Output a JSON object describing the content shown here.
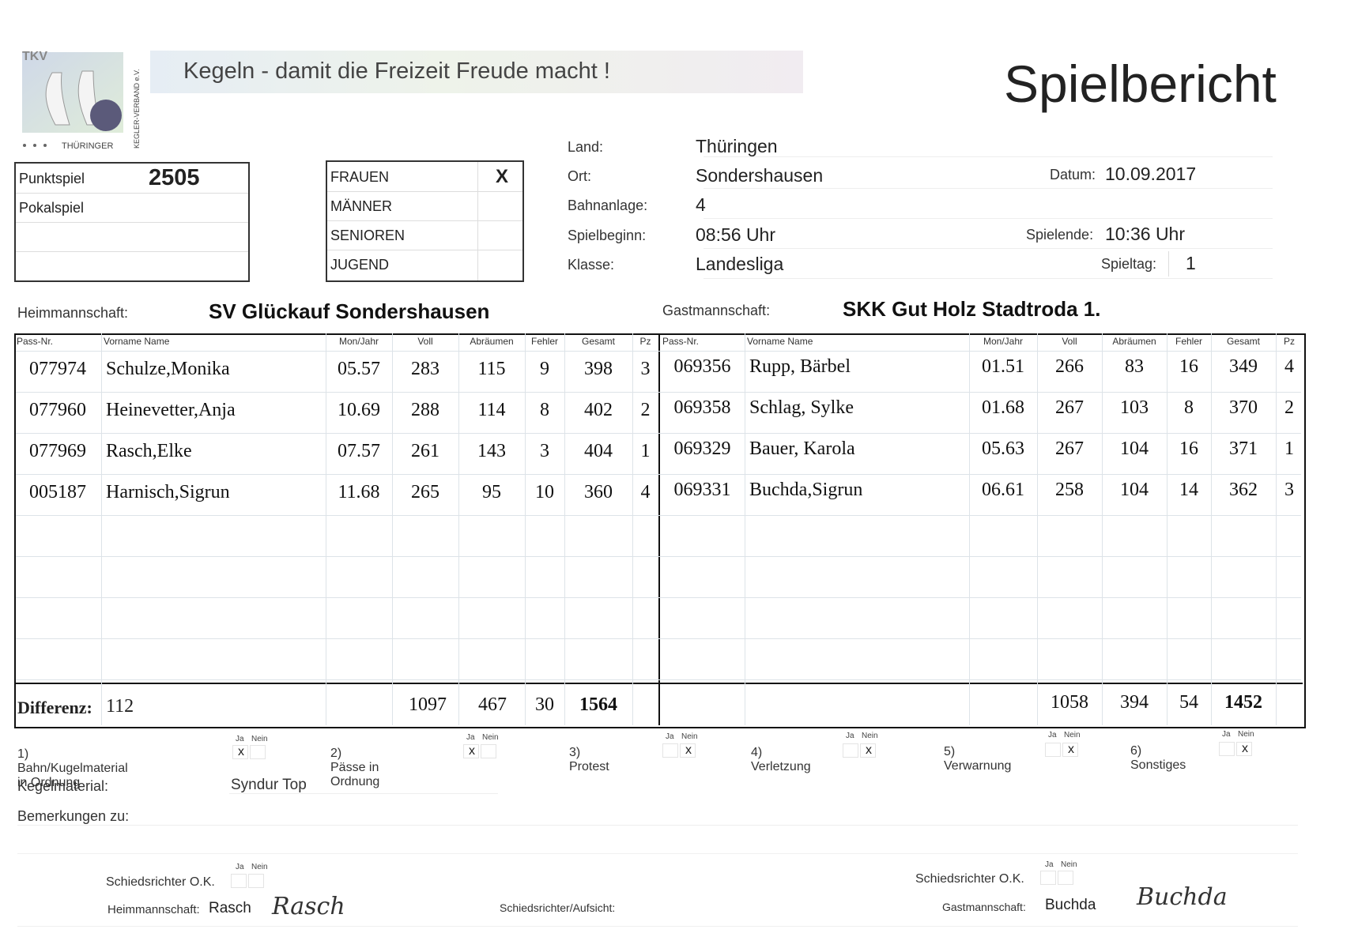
{
  "header": {
    "logo_text": "TKV",
    "logo_caption": "THÜRINGER",
    "logo_side": "KEGLER-VERBAND e.V.",
    "banner": "Kegeln  -  damit die Freizeit Freude macht !",
    "title": "Spielbericht"
  },
  "match_type": {
    "rows": [
      {
        "label": "Punktspiel",
        "value": "2505"
      },
      {
        "label": "Pokalspiel",
        "value": ""
      }
    ]
  },
  "category": {
    "rows": [
      {
        "label": "FRAUEN",
        "mark": "X"
      },
      {
        "label": "MÄNNER",
        "mark": ""
      },
      {
        "label": "SENIOREN",
        "mark": ""
      },
      {
        "label": "JUGEND",
        "mark": ""
      }
    ]
  },
  "info": {
    "land_label": "Land:",
    "land": "Thüringen",
    "ort_label": "Ort:",
    "ort": "Sondershausen",
    "bahn_label": "Bahnanlage:",
    "bahn": "4",
    "beginn_label": "Spielbeginn:",
    "beginn": "08:56 Uhr",
    "klasse_label": "Klasse:",
    "klasse": "Landesliga",
    "datum_label": "Datum:",
    "datum": "10.09.2017",
    "ende_label": "Spielende:",
    "ende": "10:36 Uhr",
    "spieltag_label": "Spieltag:",
    "spieltag": "1"
  },
  "teams": {
    "home_label": "Heimmannschaft:",
    "home": "SV Glückauf Sondershausen",
    "guest_label": "Gastmannschaft:",
    "guest": "SKK Gut Holz Stadtroda 1."
  },
  "columns": [
    "Pass-Nr.",
    "Vorname  Name",
    "Mon/Jahr",
    "Voll",
    "Abräumen",
    "Fehler",
    "Gesamt",
    "Pz"
  ],
  "home_players": [
    {
      "pass": "077974",
      "name": "Schulze,Monika",
      "mon": "05.57",
      "voll": "283",
      "abr": "115",
      "fehler": "9",
      "gesamt": "398",
      "pz": "3"
    },
    {
      "pass": "077960",
      "name": "Heinevetter,Anja",
      "mon": "10.69",
      "voll": "288",
      "abr": "114",
      "fehler": "8",
      "gesamt": "402",
      "pz": "2"
    },
    {
      "pass": "077969",
      "name": "Rasch,Elke",
      "mon": "07.57",
      "voll": "261",
      "abr": "143",
      "fehler": "3",
      "gesamt": "404",
      "pz": "1"
    },
    {
      "pass": "005187",
      "name": "Harnisch,Sigrun",
      "mon": "11.68",
      "voll": "265",
      "abr": "95",
      "fehler": "10",
      "gesamt": "360",
      "pz": "4"
    }
  ],
  "guest_players": [
    {
      "pass": "069356",
      "name": "Rupp, Bärbel",
      "mon": "01.51",
      "voll": "266",
      "abr": "83",
      "fehler": "16",
      "gesamt": "349",
      "pz": "4"
    },
    {
      "pass": "069358",
      "name": "Schlag, Sylke",
      "mon": "01.68",
      "voll": "267",
      "abr": "103",
      "fehler": "8",
      "gesamt": "370",
      "pz": "2"
    },
    {
      "pass": "069329",
      "name": "Bauer, Karola",
      "mon": "05.63",
      "voll": "267",
      "abr": "104",
      "fehler": "16",
      "gesamt": "371",
      "pz": "1"
    },
    {
      "pass": "069331",
      "name": "Buchda,Sigrun",
      "mon": "06.61",
      "voll": "258",
      "abr": "104",
      "fehler": "14",
      "gesamt": "362",
      "pz": "3"
    }
  ],
  "totals": {
    "diff_label": "Differenz:",
    "diff": "112",
    "home": {
      "voll": "1097",
      "abr": "467",
      "fehler": "30",
      "gesamt": "1564"
    },
    "guest": {
      "voll": "1058",
      "abr": "394",
      "fehler": "54",
      "gesamt": "1452"
    }
  },
  "questions": {
    "ja": "Ja",
    "nein": "Nein",
    "items": [
      {
        "label": "1) Bahn/Kugelmaterial in Ordnung",
        "ja": "x",
        "nein": ""
      },
      {
        "label": "2) Pässe in Ordnung",
        "ja": "x",
        "nein": ""
      },
      {
        "label": "3) Protest",
        "ja": "",
        "nein": "x"
      },
      {
        "label": "4) Verletzung",
        "ja": "",
        "nein": "x"
      },
      {
        "label": "5) Verwarnung",
        "ja": "",
        "nein": "x"
      },
      {
        "label": "6) Sonstiges",
        "ja": "",
        "nein": "x"
      }
    ]
  },
  "material": {
    "label": "Kegelmaterial:",
    "value": "Syndur Top"
  },
  "remarks": {
    "label": "Bemerkungen zu:"
  },
  "signatures": {
    "referee_ok": "Schiedsrichter O.K.",
    "home_label": "Heimmannschaft:",
    "home_name": "Rasch",
    "home_sig": "Rasch",
    "referee_label": "Schiedsrichter/Aufsicht:",
    "guest_label": "Gastmannschaft:",
    "guest_name": "Buchda",
    "guest_sig": "Buchda"
  },
  "colors": {
    "banner_start": "#e6edf4",
    "banner_end": "#f1ecf1",
    "logo_ball": "#5b5a7a"
  }
}
